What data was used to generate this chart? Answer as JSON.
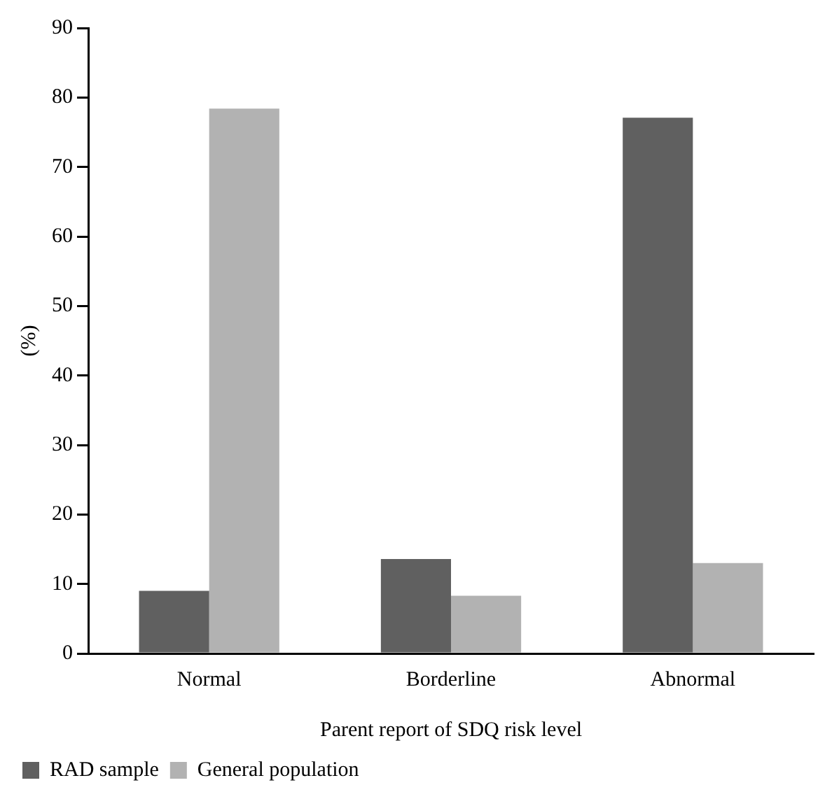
{
  "chart_data": {
    "type": "bar",
    "xlabel": "Parent report of SDQ risk level",
    "ylabel": "(%)",
    "categories": [
      "Normal",
      "Borderline",
      "Abnormal"
    ],
    "series": [
      {
        "name": "RAD sample",
        "color": "#606060",
        "values": [
          9,
          13.6,
          77.1
        ]
      },
      {
        "name": "General population",
        "color": "#b2b2b2",
        "values": [
          78.4,
          8.3,
          13
        ]
      }
    ],
    "ylim": [
      0,
      90
    ],
    "yticks": [
      0,
      10,
      20,
      30,
      40,
      50,
      60,
      70,
      80,
      90
    ],
    "grid": false,
    "legend": "bottom left"
  }
}
